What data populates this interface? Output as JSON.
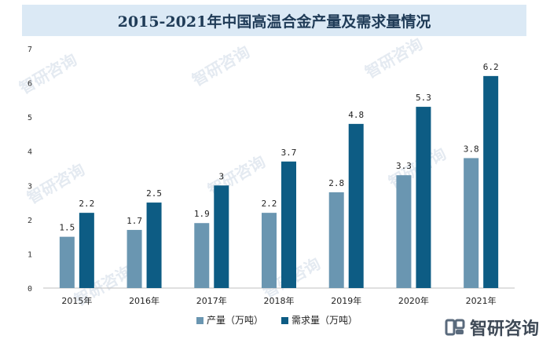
{
  "title": "2015-2021年中国高温合金产量及需求量情况",
  "brand": {
    "name": "智研咨询",
    "logo_icon": "zhiyan-logo-icon"
  },
  "watermark": "智研咨询",
  "chart_data": {
    "type": "bar",
    "title": "2015-2021年中国高温合金产量及需求量情况",
    "categories": [
      "2015年",
      "2016年",
      "2017年",
      "2018年",
      "2019年",
      "2020年",
      "2021年"
    ],
    "series": [
      {
        "name": "产量（万吨）",
        "color": "#6a96b1",
        "values": [
          1.5,
          1.7,
          1.9,
          2.2,
          2.8,
          3.3,
          3.8
        ],
        "labels": [
          "1.5",
          "1.7",
          "1.9",
          "2.2",
          "2.8",
          "3.3",
          "3.8"
        ]
      },
      {
        "name": "需求量（万吨）",
        "color": "#0d5c84",
        "values": [
          2.2,
          2.5,
          3,
          3.7,
          4.8,
          5.3,
          6.2
        ],
        "labels": [
          "2.2",
          "2.5",
          "3",
          "3.7",
          "4.8",
          "5.3",
          "6.2"
        ]
      }
    ],
    "ylim": [
      0,
      7
    ],
    "yticks": [
      "0",
      "1",
      "2",
      "3",
      "4",
      "5",
      "6",
      "7"
    ],
    "grid": false,
    "legend_position": "bottom"
  }
}
